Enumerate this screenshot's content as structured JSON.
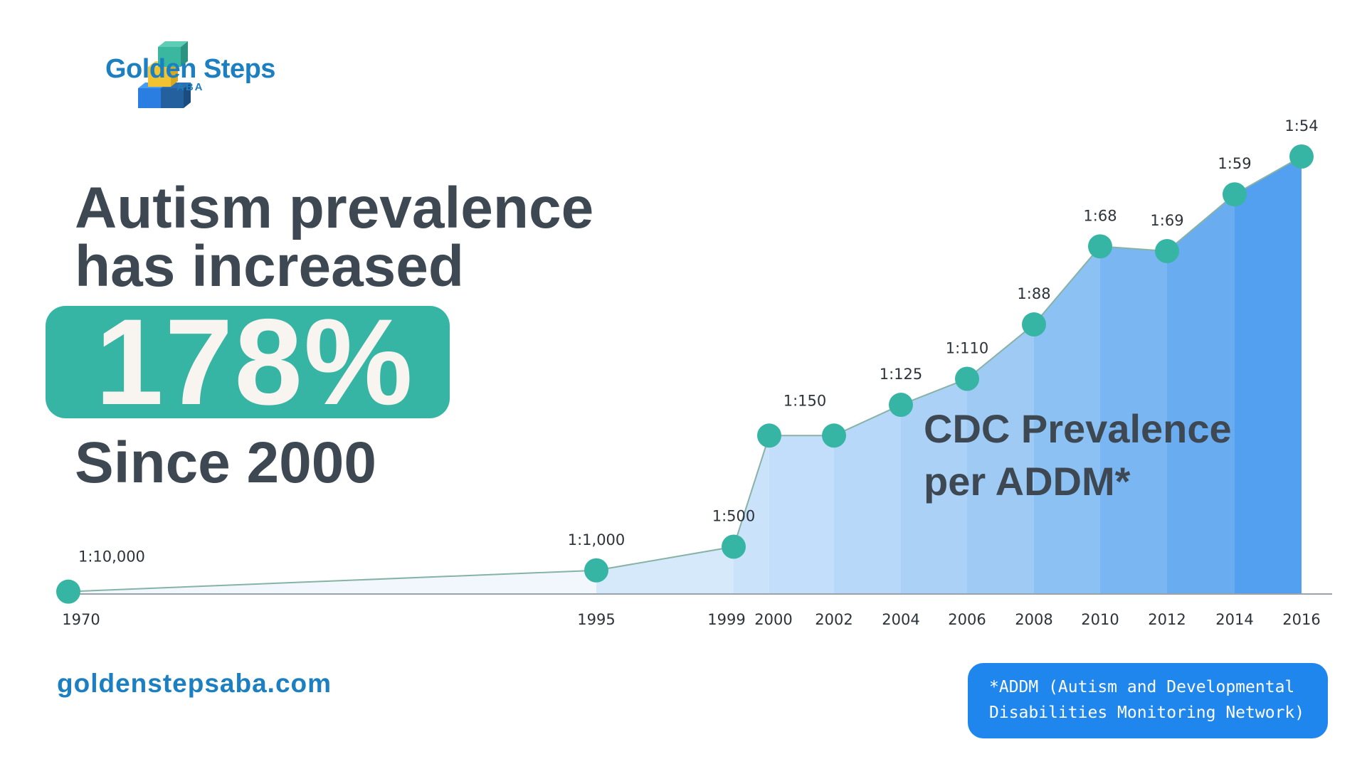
{
  "brand": {
    "name": "Golden Steps",
    "sub": "ABA",
    "website": "goldenstepsaba.com"
  },
  "headline": {
    "line1": "Autism prevalence",
    "line2": "has increased",
    "highlight": "178%",
    "since": "Since 2000"
  },
  "footnote": {
    "line1": "*ADDM (Autism and Developmental",
    "line2": "Disabilities Monitoring Network)"
  },
  "colors": {
    "teal": "#37b5a4",
    "brand_blue": "#1b7fc1",
    "dark_text": "#3e4852",
    "footnote_bg": "#1f86ee",
    "line": "#86b3a6"
  },
  "chart_data": {
    "type": "area",
    "title": "CDC Prevalence per ADDM*",
    "title_lines": [
      "CDC Prevalence",
      "per ADDM*"
    ],
    "x": [
      1970,
      1995,
      1999,
      2000,
      2002,
      2004,
      2006,
      2008,
      2010,
      2012,
      2014,
      2016
    ],
    "x_labels": [
      "1970",
      "1995",
      "1999",
      "2000",
      "2002",
      "2004",
      "2006",
      "2008",
      "2010",
      "2012",
      "2014",
      "2016"
    ],
    "point_labels": [
      "1:10,000",
      "1:1,000",
      "1:500",
      "1:150",
      "",
      "1:125",
      "1:110",
      "1:88",
      "1:68",
      "1:69",
      "1:59",
      "1:54"
    ],
    "values_per_1000": [
      0.1,
      1.0,
      2.0,
      6.7,
      6.7,
      8.0,
      9.1,
      11.4,
      14.7,
      14.5,
      16.9,
      18.5
    ],
    "segment_colors": [
      "#f1f7fd",
      "#d6e9fb",
      "#cae2fa",
      "#c3defa",
      "#b7d8f8",
      "#abd1f6",
      "#9fcaf4",
      "#8cc1f3",
      "#7ab7f2",
      "#69acf0",
      "#52a0ef"
    ],
    "xlabel": "",
    "ylabel": ""
  }
}
